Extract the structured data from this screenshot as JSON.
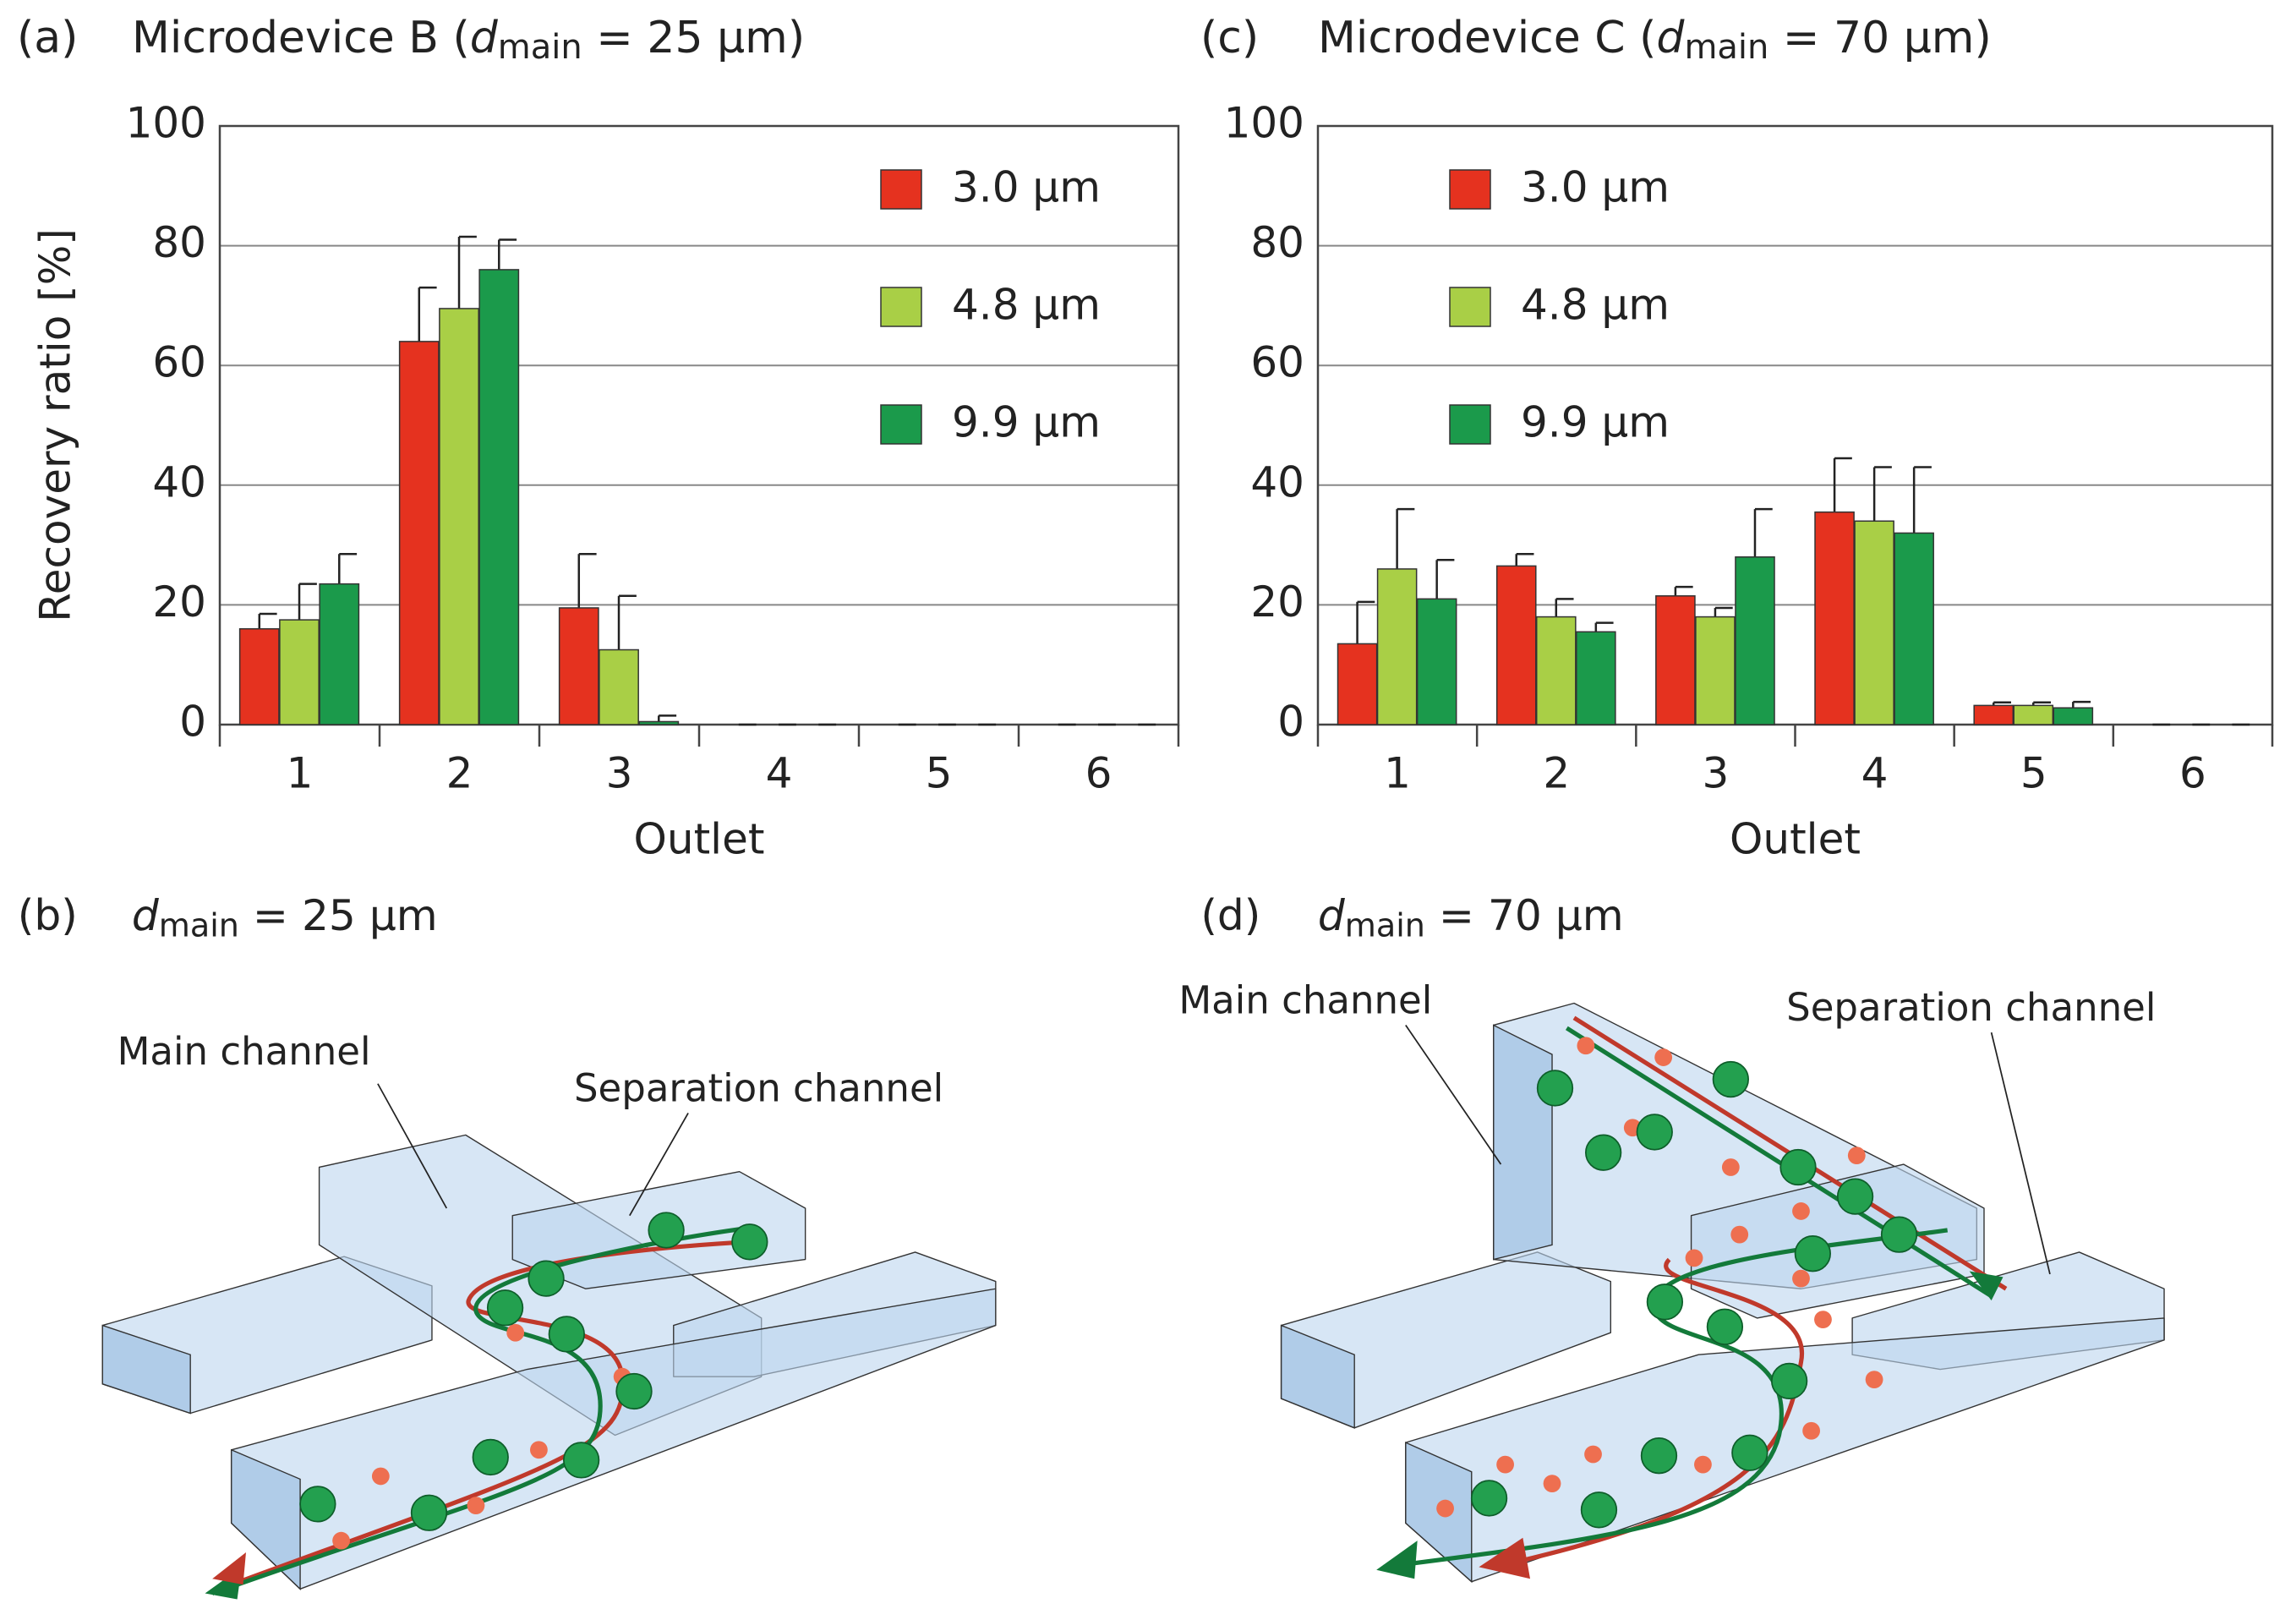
{
  "chart_data": [
    {
      "type": "bar",
      "panel": "(a)",
      "title": {
        "prefix": "Microdevice B (",
        "var": "d",
        "sub": "main",
        "suffix": " = 25 μm)"
      },
      "ylabel": "Recovery ratio [%]",
      "xlabel": "Outlet",
      "categories": [
        "1",
        "2",
        "3",
        "4",
        "5",
        "6"
      ],
      "series": [
        {
          "name": "3.0 μm",
          "color": "#e5321f",
          "values": [
            16,
            64,
            19.5,
            0,
            0,
            0
          ],
          "errors": [
            2.5,
            9,
            9,
            0,
            0,
            0
          ]
        },
        {
          "name": "4.8 μm",
          "color": "#a9cf46",
          "values": [
            17.5,
            69.5,
            12.5,
            0,
            0,
            0
          ],
          "errors": [
            6,
            12,
            9,
            0,
            0,
            0
          ]
        },
        {
          "name": "9.9 μm",
          "color": "#1b9a4b",
          "values": [
            23.5,
            76,
            0.5,
            0,
            0,
            0
          ],
          "errors": [
            5,
            5,
            1,
            0,
            0,
            0
          ]
        }
      ],
      "ylim": [
        0,
        100
      ],
      "yticks": [
        0,
        20,
        40,
        60,
        80,
        100
      ],
      "grid": true,
      "legend": "upper right"
    },
    {
      "type": "bar",
      "panel": "(c)",
      "title": {
        "prefix": "Microdevice C (",
        "var": "d",
        "sub": "main",
        "suffix": " = 70 μm)"
      },
      "xlabel": "Outlet",
      "categories": [
        "1",
        "2",
        "3",
        "4",
        "5",
        "6"
      ],
      "series": [
        {
          "name": "3.0 μm",
          "color": "#e5321f",
          "values": [
            13.5,
            26.5,
            21.5,
            35.5,
            3.2,
            0
          ],
          "errors": [
            7,
            2,
            1.5,
            9,
            0.5,
            0
          ]
        },
        {
          "name": "4.8 μm",
          "color": "#a9cf46",
          "values": [
            26,
            18,
            18,
            34,
            3.2,
            0
          ],
          "errors": [
            10,
            3,
            1.5,
            9,
            0.5,
            0
          ]
        },
        {
          "name": "9.9 μm",
          "color": "#1b9a4b",
          "values": [
            21,
            15.5,
            28,
            32,
            2.8,
            0
          ],
          "errors": [
            6.5,
            1.5,
            8,
            11,
            1,
            0
          ]
        }
      ],
      "ylim": [
        0,
        100
      ],
      "yticks": [
        0,
        20,
        40,
        60,
        80,
        100
      ],
      "grid": true,
      "legend": "upper left"
    }
  ],
  "diagrams": [
    {
      "panel": "(b)",
      "title": {
        "var": "d",
        "sub": "main",
        "suffix": " = 25 μm"
      },
      "labels": [
        "Main channel",
        "Separation channel"
      ]
    },
    {
      "panel": "(d)",
      "title": {
        "var": "d",
        "sub": "main",
        "suffix": " = 70 μm"
      },
      "labels": [
        "Main channel",
        "Separation channel"
      ]
    }
  ]
}
